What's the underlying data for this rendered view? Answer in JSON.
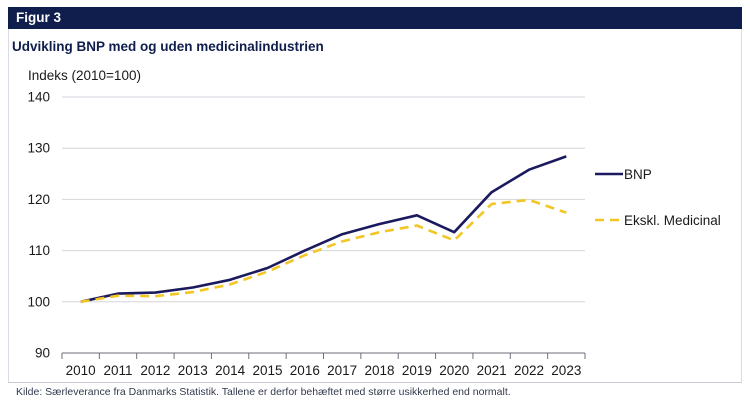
{
  "header": {
    "figure_label": "Figur 3"
  },
  "subtitle": "Udvikling BNP med og uden medicinalindustrien",
  "source": "Kilde:  Særleverance fra Danmarks Statistik.  Tallene er derfor behæftet med større usikkerhed end normalt.",
  "colors": {
    "header_bg": "#0f1e4d",
    "bnp": "#1b1a5e",
    "medicinal": "#f3c623"
  },
  "chart_data": {
    "type": "line",
    "title": "",
    "xlabel": "",
    "ylabel": "Indeks (2010=100)",
    "x": [
      "2010",
      "2011",
      "2012",
      "2013",
      "2014",
      "2015",
      "2016",
      "2017",
      "2018",
      "2019",
      "2020",
      "2021",
      "2022",
      "2023"
    ],
    "ylim": [
      90,
      140
    ],
    "yticks": [
      90,
      100,
      110,
      120,
      130,
      140
    ],
    "grid": true,
    "legend_position": "right",
    "series": [
      {
        "name": "BNP",
        "color": "#1b1a5e",
        "style": "solid",
        "values": [
          100,
          101.6,
          101.8,
          102.8,
          104.3,
          106.6,
          110.0,
          113.2,
          115.2,
          116.9,
          113.6,
          121.4,
          125.8,
          128.4
        ]
      },
      {
        "name": "Ekskl. Medicinal",
        "color": "#f3c623",
        "style": "dashed",
        "values": [
          100,
          101.2,
          101.1,
          101.9,
          103.4,
          105.9,
          109.1,
          111.8,
          113.6,
          114.9,
          112.0,
          119.1,
          119.9,
          117.4
        ]
      }
    ]
  }
}
